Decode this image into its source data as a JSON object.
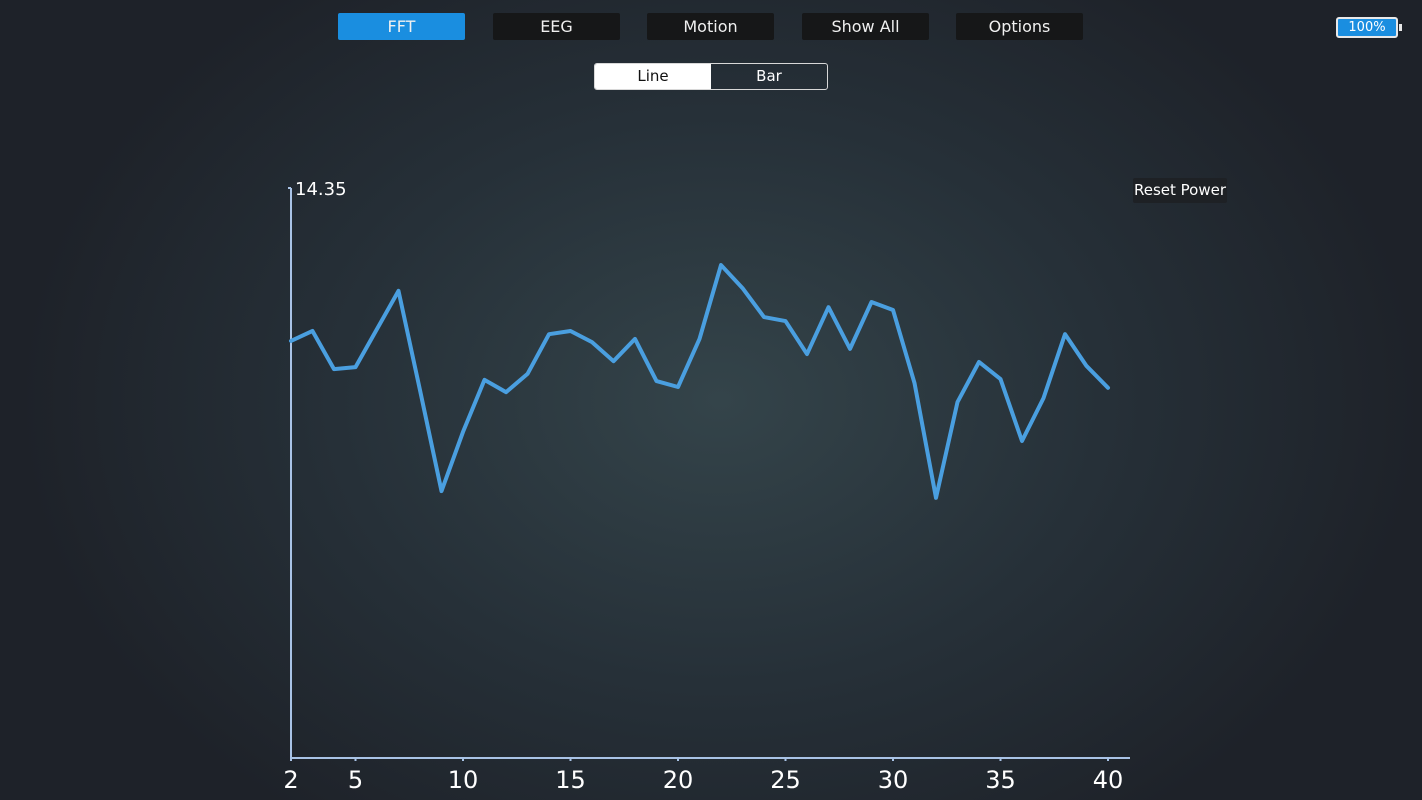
{
  "toolbar": {
    "tabs": [
      "FFT",
      "EEG",
      "Motion",
      "Show All",
      "Options"
    ],
    "battery": "100%"
  },
  "view_toggle": {
    "options": [
      "Line",
      "Bar"
    ]
  },
  "reset_button": "Reset Power",
  "chart_data": {
    "type": "line",
    "color": "#4a9fe0",
    "x": [
      2,
      3,
      4,
      5,
      6,
      7,
      8,
      9,
      10,
      11,
      12,
      13,
      14,
      15,
      16,
      17,
      18,
      19,
      20,
      21,
      22,
      23,
      24,
      25,
      26,
      27,
      28,
      29,
      30,
      31,
      32,
      33,
      34,
      35,
      36,
      37,
      38,
      39,
      40
    ],
    "values": [
      10.5,
      10.75,
      9.79,
      9.84,
      10.8,
      11.76,
      9.26,
      6.72,
      8.21,
      9.52,
      9.21,
      9.67,
      10.67,
      10.75,
      10.47,
      9.99,
      10.55,
      9.49,
      9.34,
      10.55,
      12.41,
      11.83,
      11.1,
      11.0,
      10.17,
      11.35,
      10.3,
      11.48,
      11.28,
      9.44,
      6.55,
      8.96,
      9.97,
      9.54,
      7.98,
      9.06,
      10.67,
      9.87,
      9.32
    ],
    "xlim": [
      2,
      40
    ],
    "xticks": [
      2,
      5,
      10,
      15,
      20,
      25,
      30,
      35,
      40
    ],
    "ylim": [
      0,
      14.35
    ],
    "yticks": [
      14.35
    ]
  }
}
